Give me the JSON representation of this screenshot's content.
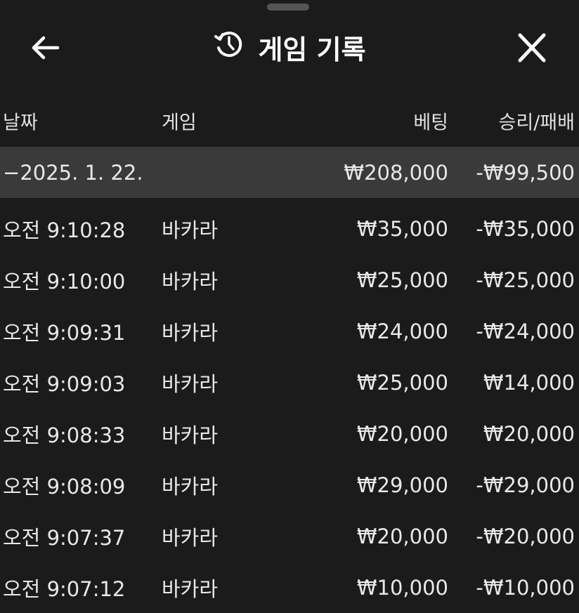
{
  "header": {
    "title": "게임 기록",
    "back_icon": "arrow-left-icon",
    "history_icon": "history-icon",
    "close_icon": "close-icon"
  },
  "columns": {
    "date": "날짜",
    "game": "게임",
    "bet": "베팅",
    "result": "승리/패배"
  },
  "group": {
    "toggle": "−",
    "date": "2025. 1. 22.",
    "bet": "₩208,000",
    "result": "-₩99,500"
  },
  "rows": [
    {
      "time": "오전 9:10:28",
      "game": "바카라",
      "bet": "₩35,000",
      "result": "-₩35,000"
    },
    {
      "time": "오전 9:10:00",
      "game": "바카라",
      "bet": "₩25,000",
      "result": "-₩25,000"
    },
    {
      "time": "오전 9:09:31",
      "game": "바카라",
      "bet": "₩24,000",
      "result": "-₩24,000"
    },
    {
      "time": "오전 9:09:03",
      "game": "바카라",
      "bet": "₩25,000",
      "result": "₩14,000"
    },
    {
      "time": "오전 9:08:33",
      "game": "바카라",
      "bet": "₩20,000",
      "result": "₩20,000"
    },
    {
      "time": "오전 9:08:09",
      "game": "바카라",
      "bet": "₩29,000",
      "result": "-₩29,000"
    },
    {
      "time": "오전 9:07:37",
      "game": "바카라",
      "bet": "₩20,000",
      "result": "-₩20,000"
    },
    {
      "time": "오전 9:07:12",
      "game": "바카라",
      "bet": "₩10,000",
      "result": "-₩10,000"
    }
  ]
}
